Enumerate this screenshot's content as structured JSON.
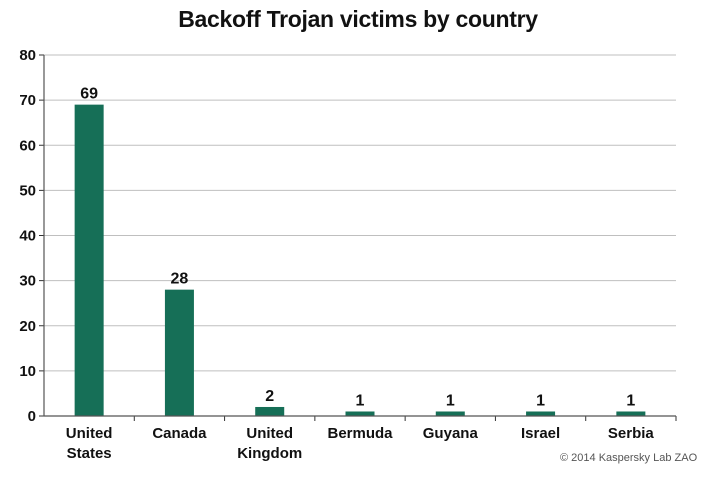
{
  "chart_data": {
    "type": "bar",
    "title": "Backoff Trojan victims by country",
    "categories": [
      [
        "United",
        "States"
      ],
      [
        "Canada"
      ],
      [
        "United",
        "Kingdom"
      ],
      [
        "Bermuda"
      ],
      [
        "Guyana"
      ],
      [
        "Israel"
      ],
      [
        "Serbia"
      ]
    ],
    "values": [
      69,
      28,
      2,
      1,
      1,
      1,
      1
    ],
    "data_labels": [
      "69",
      "28",
      "2",
      "1",
      "1",
      "1",
      "1"
    ],
    "xlabel": "",
    "ylabel": "",
    "ylim": [
      0,
      80
    ],
    "yticks": [
      0,
      10,
      20,
      30,
      40,
      50,
      60,
      70,
      80
    ],
    "grid": true,
    "bar_color": "#166f57",
    "grid_color": "#bfbfbf"
  },
  "footer": {
    "copyright": "© 2014 Kaspersky Lab ZAO"
  }
}
